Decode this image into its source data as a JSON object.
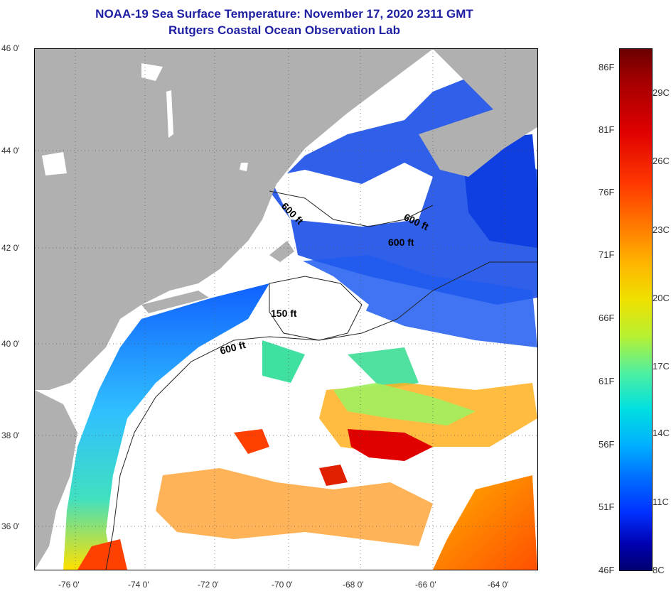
{
  "title": {
    "line1": "NOAA-19 Sea Surface Temperature:  November 17, 2020 2311 GMT",
    "line2": "Rutgers Coastal Ocean Observation Lab"
  },
  "map": {
    "latitude_labels": [
      "46 0'",
      "44 0'",
      "42 0'",
      "40 0'",
      "38 0'",
      "36 0'"
    ],
    "longitude_labels": [
      "-76 0'",
      "-74 0'",
      "-72 0'",
      "-70 0'",
      "-68 0'",
      "-66 0'",
      "-64 0'"
    ],
    "contour_labels": [
      "600 ft",
      "600 ft",
      "600 ft",
      "150 ft",
      "600 ft"
    ],
    "colors": {
      "land": "#b0b0b0",
      "cloud": "#ffffff",
      "cold_water": "#1040e0",
      "warm_water": "#ff6000",
      "hot_water": "#e00000",
      "shelf_water": "#30d0ff"
    }
  },
  "colorbar": {
    "fahrenheit_labels": [
      "86F",
      "81F",
      "76F",
      "71F",
      "66F",
      "61F",
      "56F",
      "51F",
      "46F"
    ],
    "celsius_labels": [
      "29C",
      "26C",
      "23C",
      "20C",
      "17C",
      "14C",
      "11C",
      "8C"
    ],
    "gradient_colors": [
      "#6a0000",
      "#e00000",
      "#ff7a00",
      "#f0e000",
      "#50f0a0",
      "#00e0e0",
      "#0070ff",
      "#0000b0"
    ]
  }
}
